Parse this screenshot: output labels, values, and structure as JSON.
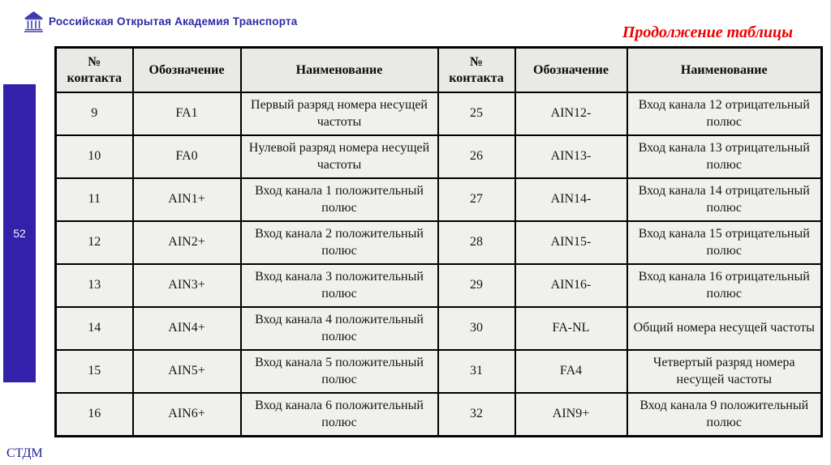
{
  "header": {
    "logo_text": "Российская Открытая Академия Транспорта",
    "continuation_label": "Продолжение таблицы"
  },
  "sidebar": {
    "page_number": "52"
  },
  "footer": {
    "label": "СТДМ"
  },
  "colors": {
    "accent_indigo": "#3320ab",
    "logo_blue": "#2b2ba6",
    "red_label": "#ee0000",
    "header_bg": "#e9e9e5",
    "cell_bg": "#f0f0ec",
    "border": "#000000"
  },
  "table": {
    "headers": [
      "№ контакта",
      "Обозначение",
      "Наименование",
      "№ контакта",
      "Обозначение",
      "Наименование"
    ],
    "rows": [
      [
        "9",
        "FA1",
        "Первый разряд номера несущей частоты",
        "25",
        "AIN12-",
        "Вход канала 12 отрицательный полюс"
      ],
      [
        "10",
        "FA0",
        "Нулевой разряд номера несущей частоты",
        "26",
        "AIN13-",
        "Вход канала 13 отрицательный полюс"
      ],
      [
        "11",
        "AIN1+",
        "Вход канала 1 положительный полюс",
        "27",
        "AIN14-",
        "Вход канала 14 отрицательный полюс"
      ],
      [
        "12",
        "AIN2+",
        "Вход канала 2 положительный полюс",
        "28",
        "AIN15-",
        "Вход канала 15 отрицательный полюс"
      ],
      [
        "13",
        "AIN3+",
        "Вход канала 3 положительный полюс",
        "29",
        "AIN16-",
        "Вход канала 16 отрицательный полюс"
      ],
      [
        "14",
        "AIN4+",
        "Вход канала 4 положительный полюс",
        "30",
        "FA-NL",
        "Общий номера несущей частоты"
      ],
      [
        "15",
        "AIN5+",
        "Вход канала 5 положительный полюс",
        "31",
        "FA4",
        "Четвертый разряд номера несущей частоты"
      ],
      [
        "16",
        "AIN6+",
        "Вход канала 6 положительный полюс",
        "32",
        "AIN9+",
        "Вход канала 9 положительный полюс"
      ]
    ]
  }
}
